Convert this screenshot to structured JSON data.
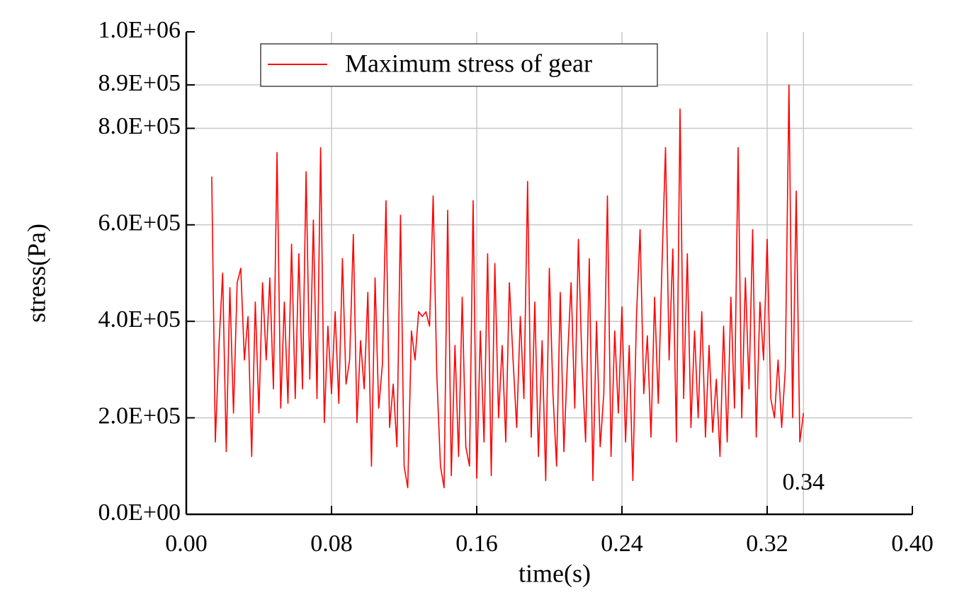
{
  "chart_data": {
    "type": "line",
    "x_label": "time(s)",
    "y_label": "stress(Pa)",
    "xlim": [
      0,
      0.4
    ],
    "ylim": [
      0,
      1000000
    ],
    "xticks": [
      {
        "value": 0,
        "label": "0.00"
      },
      0.08,
      0.16,
      0.24,
      0.32,
      {
        "value": 0.4,
        "label": "0.40"
      }
    ],
    "yticks": [
      {
        "value": 0,
        "label": "0.0E+00"
      },
      {
        "value": 200000,
        "label": "2.0E+05"
      },
      {
        "value": 400000,
        "label": "4.0E+05"
      },
      {
        "value": 600000,
        "label": "6.0E+05"
      },
      {
        "value": 800000,
        "label": "8.0E+05"
      },
      {
        "value": 890000,
        "label": "8.9E+05"
      },
      {
        "value": 1000000,
        "label": "1.0E+06"
      }
    ],
    "grid": true,
    "legend": "top-left",
    "reference_line": {
      "x": 0.34,
      "label": "0.34"
    },
    "x": [
      0.014,
      0.016,
      0.018,
      0.02,
      0.022,
      0.024,
      0.026,
      0.028,
      0.03,
      0.032,
      0.034,
      0.036,
      0.038,
      0.04,
      0.042,
      0.044,
      0.046,
      0.048,
      0.05,
      0.052,
      0.054,
      0.056,
      0.058,
      0.06,
      0.062,
      0.064,
      0.066,
      0.068,
      0.07,
      0.072,
      0.074,
      0.076,
      0.078,
      0.08,
      0.082,
      0.084,
      0.086,
      0.088,
      0.09,
      0.092,
      0.094,
      0.096,
      0.098,
      0.1,
      0.102,
      0.104,
      0.106,
      0.108,
      0.11,
      0.112,
      0.114,
      0.116,
      0.118,
      0.12,
      0.122,
      0.124,
      0.126,
      0.128,
      0.13,
      0.132,
      0.134,
      0.136,
      0.138,
      0.14,
      0.142,
      0.144,
      0.146,
      0.148,
      0.15,
      0.152,
      0.154,
      0.156,
      0.158,
      0.16,
      0.162,
      0.164,
      0.166,
      0.168,
      0.17,
      0.172,
      0.174,
      0.176,
      0.178,
      0.18,
      0.182,
      0.184,
      0.186,
      0.188,
      0.19,
      0.192,
      0.194,
      0.196,
      0.198,
      0.2,
      0.202,
      0.204,
      0.206,
      0.208,
      0.21,
      0.212,
      0.214,
      0.216,
      0.218,
      0.22,
      0.222,
      0.224,
      0.226,
      0.228,
      0.23,
      0.232,
      0.234,
      0.236,
      0.238,
      0.24,
      0.242,
      0.244,
      0.246,
      0.248,
      0.25,
      0.252,
      0.254,
      0.256,
      0.258,
      0.26,
      0.262,
      0.264,
      0.266,
      0.268,
      0.27,
      0.272,
      0.274,
      0.276,
      0.278,
      0.28,
      0.282,
      0.284,
      0.286,
      0.288,
      0.29,
      0.292,
      0.294,
      0.296,
      0.298,
      0.3,
      0.302,
      0.304,
      0.306,
      0.308,
      0.31,
      0.312,
      0.314,
      0.316,
      0.318,
      0.32,
      0.322,
      0.324,
      0.326,
      0.328,
      0.33,
      0.332,
      0.334,
      0.336,
      0.338,
      0.34
    ],
    "series": [
      {
        "name": "Maximum stress of gear",
        "color": "#ff0000",
        "values": [
          700000,
          150000,
          350000,
          500000,
          130000,
          470000,
          210000,
          480000,
          510000,
          320000,
          410000,
          120000,
          440000,
          210000,
          480000,
          320000,
          490000,
          260000,
          750000,
          220000,
          440000,
          230000,
          560000,
          240000,
          540000,
          260000,
          710000,
          280000,
          610000,
          240000,
          760000,
          190000,
          390000,
          250000,
          420000,
          230000,
          530000,
          270000,
          320000,
          580000,
          190000,
          360000,
          260000,
          460000,
          100000,
          490000,
          220000,
          310000,
          650000,
          180000,
          270000,
          140000,
          620000,
          100000,
          55000,
          380000,
          320000,
          420000,
          410000,
          420000,
          390000,
          660000,
          290000,
          100000,
          55000,
          630000,
          80000,
          350000,
          120000,
          450000,
          140000,
          100000,
          650000,
          75000,
          380000,
          150000,
          540000,
          80000,
          520000,
          200000,
          350000,
          150000,
          480000,
          320000,
          180000,
          410000,
          240000,
          690000,
          160000,
          440000,
          120000,
          360000,
          70000,
          510000,
          250000,
          100000,
          460000,
          130000,
          320000,
          480000,
          220000,
          570000,
          310000,
          150000,
          530000,
          70000,
          400000,
          140000,
          250000,
          660000,
          120000,
          380000,
          210000,
          430000,
          150000,
          350000,
          70000,
          410000,
          590000,
          250000,
          370000,
          160000,
          450000,
          230000,
          510000,
          760000,
          320000,
          550000,
          150000,
          840000,
          240000,
          540000,
          180000,
          380000,
          200000,
          420000,
          160000,
          350000,
          170000,
          280000,
          120000,
          390000,
          150000,
          450000,
          220000,
          760000,
          200000,
          490000,
          260000,
          590000,
          160000,
          440000,
          320000,
          570000,
          240000,
          200000,
          320000,
          180000,
          300000,
          890000,
          200000,
          670000,
          150000,
          210000
        ]
      }
    ]
  }
}
